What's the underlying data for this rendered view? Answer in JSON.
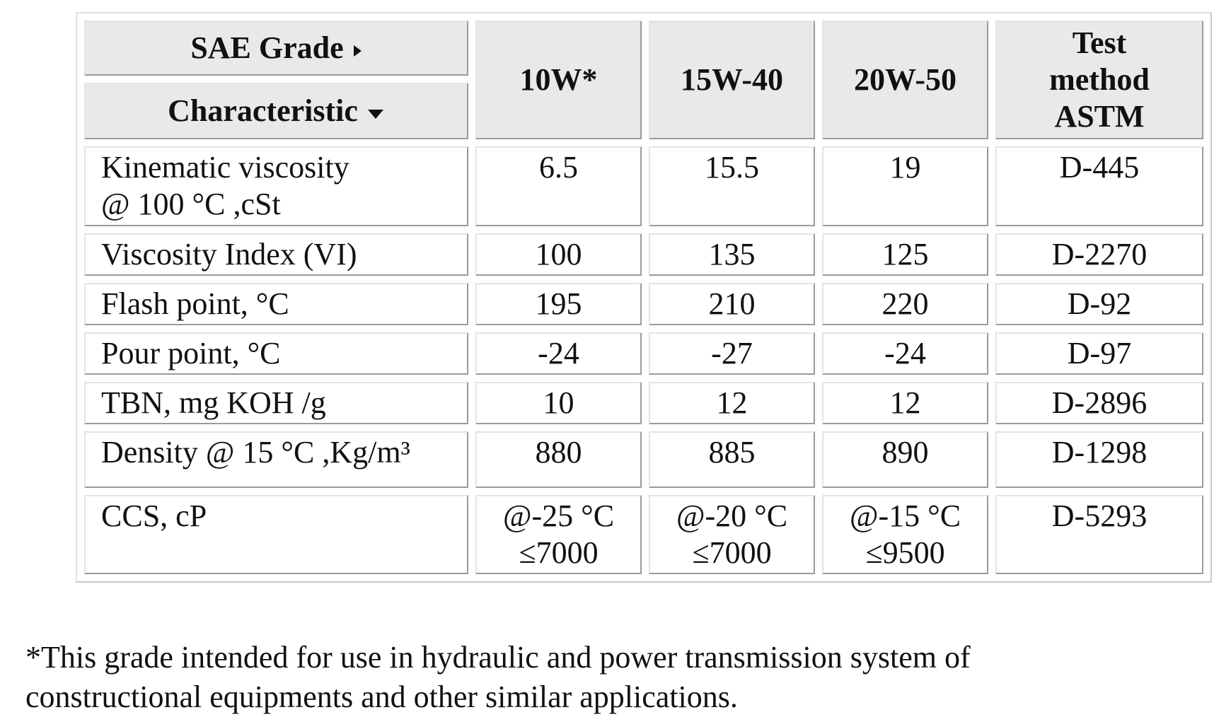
{
  "table": {
    "header": {
      "sae_grade": "SAE Grade",
      "characteristic": "Characteristic",
      "columns": [
        "10W*",
        "15W-40",
        "20W-50",
        "Test\nmethod\nASTM"
      ]
    },
    "rows": [
      [
        "Kinematic viscosity\n@ 100 °C ,cSt",
        "6.5",
        "15.5",
        "19",
        "D-445"
      ],
      [
        "Viscosity Index (VI)",
        "100",
        "135",
        "125",
        "D-2270"
      ],
      [
        "Flash point, °C",
        "195",
        "210",
        "220",
        "D-92"
      ],
      [
        "Pour point, °C",
        "-24",
        "-27",
        "-24",
        "D-97"
      ],
      [
        "TBN, mg KOH /g",
        "10",
        "12",
        "12",
        "D-2896"
      ],
      [
        "Density @ 15 °C ,Kg/m³",
        "880",
        "885",
        "890",
        "D-1298"
      ],
      [
        "CCS, cP",
        "@-25 °C\n≤7000",
        "@-20 °C\n≤7000",
        "@-15 °C\n≤9500",
        "D-5293"
      ]
    ]
  },
  "footnote": "*This grade intended for use in hydraulic and power transmission system of constructional equipments and other similar applications."
}
